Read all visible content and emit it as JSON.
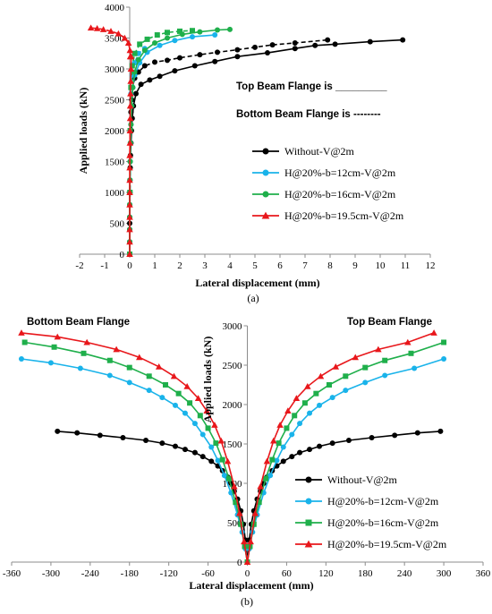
{
  "chart_data": [
    {
      "type": "line",
      "caption": "(a)",
      "xlabel": "Lateral displacement (mm)",
      "ylabel": "Applied loads (kN)",
      "xlim": [
        -2,
        12
      ],
      "ylim": [
        0,
        4000
      ],
      "xticks": [
        "-2",
        "-1",
        "0",
        "1",
        "2",
        "3",
        "4",
        "5",
        "6",
        "7",
        "8",
        "9",
        "10",
        "11",
        "12"
      ],
      "yticks": [
        "0",
        "500",
        "1000",
        "1500",
        "2000",
        "2500",
        "3000",
        "3500",
        "4000"
      ],
      "grid": false,
      "legend_position": "center-right",
      "annotations": [
        "Top Beam Flange is _________",
        "Bottom Beam Flange is --------"
      ],
      "series": [
        {
          "name": "Without-V@2m",
          "color": "#000000",
          "marker": "circle",
          "flange": "top",
          "x": [
            0,
            0,
            0,
            0,
            0,
            0,
            0.01,
            0.02,
            0.03,
            0.05,
            0.07,
            0.1,
            0.15,
            0.25,
            0.45,
            0.8,
            1.2,
            1.8,
            2.6,
            3.4,
            4.3,
            5.5,
            6.6,
            7.4,
            8.2,
            9.6,
            10.9
          ],
          "y": [
            0,
            200,
            400,
            600,
            800,
            1000,
            1200,
            1400,
            1600,
            1800,
            2000,
            2200,
            2400,
            2600,
            2750,
            2820,
            2880,
            2970,
            3050,
            3120,
            3200,
            3260,
            3330,
            3380,
            3400,
            3440,
            3470
          ]
        },
        {
          "name": "Without-V@2m",
          "color": "#000000",
          "marker": "circle",
          "flange": "bottom",
          "x": [
            0,
            0,
            0.01,
            0.02,
            0.03,
            0.05,
            0.08,
            0.12,
            0.2,
            0.35,
            0.6,
            1.0,
            1.5,
            2.0,
            2.8,
            3.5,
            4.3,
            5.0,
            5.7,
            6.6,
            7.9
          ],
          "y": [
            0,
            500,
            1000,
            1500,
            2000,
            2300,
            2500,
            2700,
            2850,
            2950,
            3050,
            3110,
            3140,
            3180,
            3230,
            3270,
            3310,
            3350,
            3390,
            3420,
            3470
          ]
        },
        {
          "name": "H@20%-b=12cm-V@2m",
          "color": "#19B3EA",
          "marker": "circle",
          "flange": "top",
          "x": [
            0,
            0,
            0,
            0,
            0,
            0,
            0.01,
            0.02,
            0.03,
            0.05,
            0.08,
            0.12,
            0.2,
            0.4,
            0.7,
            1.2,
            1.8,
            2.5,
            3.4
          ],
          "y": [
            0,
            200,
            400,
            600,
            800,
            1000,
            1200,
            1500,
            1800,
            2100,
            2400,
            2700,
            2900,
            3100,
            3270,
            3380,
            3460,
            3520,
            3550
          ]
        },
        {
          "name": "H@20%-b=12cm-V@2m",
          "color": "#19B3EA",
          "marker": "circle",
          "flange": "bottom",
          "x": [
            0,
            0.01,
            0.02,
            0.05,
            0.1,
            0.2,
            0.35,
            0.6
          ],
          "y": [
            0,
            1000,
            2000,
            2600,
            2900,
            3100,
            3250,
            3330
          ]
        },
        {
          "name": "H@20%-b=16cm-V@2m",
          "color": "#1FAF4B",
          "marker": "circle",
          "flange": "top",
          "x": [
            0,
            0,
            0,
            0,
            0,
            0,
            0.01,
            0.02,
            0.03,
            0.05,
            0.08,
            0.12,
            0.2,
            0.35,
            0.6,
            1.0,
            1.5,
            2.1,
            2.8,
            3.5,
            4.0
          ],
          "y": [
            0,
            200,
            400,
            600,
            800,
            1000,
            1200,
            1500,
            1800,
            2100,
            2400,
            2700,
            2950,
            3150,
            3300,
            3420,
            3500,
            3560,
            3600,
            3630,
            3640
          ]
        },
        {
          "name": "H@20%-b=16cm-V@2m",
          "color": "#1FAF4B",
          "marker": "square",
          "flange": "bottom",
          "x": [
            0,
            0.01,
            0.02,
            0.05,
            0.1,
            0.2,
            0.4,
            0.7,
            1.1,
            1.5,
            2.0,
            2.5
          ],
          "y": [
            0,
            1000,
            2000,
            2700,
            3050,
            3250,
            3400,
            3480,
            3550,
            3590,
            3610,
            3620
          ]
        },
        {
          "name": "H@20%-b=19.5cm-V@2m",
          "color": "#E8171B",
          "marker": "triangle",
          "flange": "top",
          "x": [
            0,
            0,
            0,
            0,
            0,
            0,
            0,
            0,
            0,
            0.01,
            0.01,
            0.02,
            0.02,
            0.03,
            0.04,
            0.05,
            0.06
          ],
          "y": [
            0,
            200,
            400,
            600,
            800,
            1000,
            1200,
            1400,
            1600,
            1800,
            2000,
            2200,
            2400,
            2600,
            2800,
            3000,
            3200
          ]
        },
        {
          "name": "H@20%-b=19.5cm-V@2m",
          "color": "#E8171B",
          "marker": "triangle",
          "flange": "bottom",
          "x": [
            0.02,
            0.01,
            -0.05,
            -0.2,
            -0.45,
            -0.75,
            -1.05,
            -1.3,
            -1.55
          ],
          "y": [
            3200,
            3300,
            3420,
            3500,
            3570,
            3610,
            3640,
            3655,
            3665
          ]
        }
      ]
    },
    {
      "type": "line",
      "caption": "(b)",
      "xlabel": "Lateral displacement (mm)",
      "ylabel": "Applied loads (kN)",
      "xlim": [
        -360,
        360
      ],
      "ylim": [
        0,
        3000
      ],
      "xticks": [
        "-360",
        "-300",
        "-240",
        "-180",
        "-120",
        "-60",
        "0",
        "60",
        "120",
        "180",
        "240",
        "300",
        "360"
      ],
      "yticks": [
        "0",
        "500",
        "1000",
        "1500",
        "2000",
        "2500",
        "3000"
      ],
      "grid": false,
      "legend_position": "bottom-right",
      "region_labels": [
        "Bottom Beam Flange",
        "Top Beam Flange"
      ],
      "series": [
        {
          "name": "Without-V@2m",
          "color": "#000000",
          "marker": "circle",
          "x": [
            -290,
            -260,
            -225,
            -190,
            -155,
            -130,
            -110,
            -95,
            -80,
            -68,
            -55,
            -45,
            -38,
            -30,
            -25,
            -20,
            -15,
            -10,
            -6,
            -3,
            0,
            3,
            6,
            10,
            15,
            20,
            25,
            30,
            38,
            45,
            55,
            68,
            80,
            95,
            110,
            130,
            155,
            190,
            225,
            260,
            295
          ],
          "y": [
            1660,
            1640,
            1610,
            1580,
            1545,
            1510,
            1470,
            1430,
            1390,
            1340,
            1280,
            1220,
            1160,
            1080,
            1000,
            900,
            800,
            650,
            480,
            280,
            0,
            280,
            480,
            650,
            800,
            900,
            1000,
            1080,
            1160,
            1220,
            1280,
            1340,
            1390,
            1430,
            1470,
            1510,
            1545,
            1580,
            1610,
            1640,
            1660
          ]
        },
        {
          "name": "H@20%-b=12cm-V@2m",
          "color": "#19B3EA",
          "marker": "circle",
          "x": [
            -345,
            -300,
            -255,
            -210,
            -180,
            -150,
            -130,
            -110,
            -95,
            -80,
            -68,
            -55,
            -45,
            -35,
            -25,
            -15,
            -8,
            -3,
            0,
            3,
            8,
            15,
            25,
            35,
            45,
            55,
            68,
            80,
            95,
            110,
            130,
            150,
            180,
            210,
            255,
            300
          ],
          "y": [
            2580,
            2530,
            2460,
            2370,
            2280,
            2180,
            2090,
            1990,
            1890,
            1760,
            1620,
            1460,
            1290,
            1100,
            880,
            600,
            380,
            170,
            0,
            170,
            380,
            600,
            880,
            1100,
            1290,
            1460,
            1620,
            1760,
            1890,
            1990,
            2090,
            2180,
            2280,
            2370,
            2460,
            2580
          ]
        },
        {
          "name": "H@20%-b=16cm-V@2m",
          "color": "#1FAF4B",
          "marker": "square",
          "x": [
            -340,
            -295,
            -250,
            -210,
            -180,
            -150,
            -125,
            -105,
            -88,
            -72,
            -60,
            -48,
            -38,
            -28,
            -18,
            -10,
            -4,
            0,
            4,
            10,
            18,
            28,
            38,
            48,
            60,
            72,
            88,
            105,
            125,
            150,
            180,
            210,
            250,
            300
          ],
          "y": [
            2790,
            2730,
            2650,
            2560,
            2470,
            2360,
            2250,
            2140,
            2020,
            1860,
            1700,
            1510,
            1300,
            1060,
            760,
            480,
            200,
            0,
            200,
            480,
            760,
            1060,
            1300,
            1510,
            1700,
            1860,
            2020,
            2140,
            2250,
            2360,
            2470,
            2560,
            2650,
            2790
          ]
        },
        {
          "name": "H@20%-b=19.5cm-V@2m",
          "color": "#E8171B",
          "marker": "triangle",
          "x": [
            -345,
            -290,
            -245,
            -200,
            -165,
            -135,
            -112,
            -92,
            -75,
            -62,
            -50,
            -40,
            -30,
            -20,
            -12,
            -5,
            0,
            5,
            12,
            20,
            30,
            40,
            50,
            62,
            75,
            92,
            112,
            135,
            165,
            200,
            245,
            285
          ],
          "y": [
            2910,
            2860,
            2790,
            2700,
            2600,
            2480,
            2360,
            2230,
            2080,
            1920,
            1740,
            1540,
            1280,
            960,
            620,
            260,
            0,
            260,
            620,
            960,
            1280,
            1540,
            1740,
            1920,
            2080,
            2230,
            2360,
            2480,
            2600,
            2700,
            2790,
            2910
          ]
        }
      ]
    }
  ]
}
